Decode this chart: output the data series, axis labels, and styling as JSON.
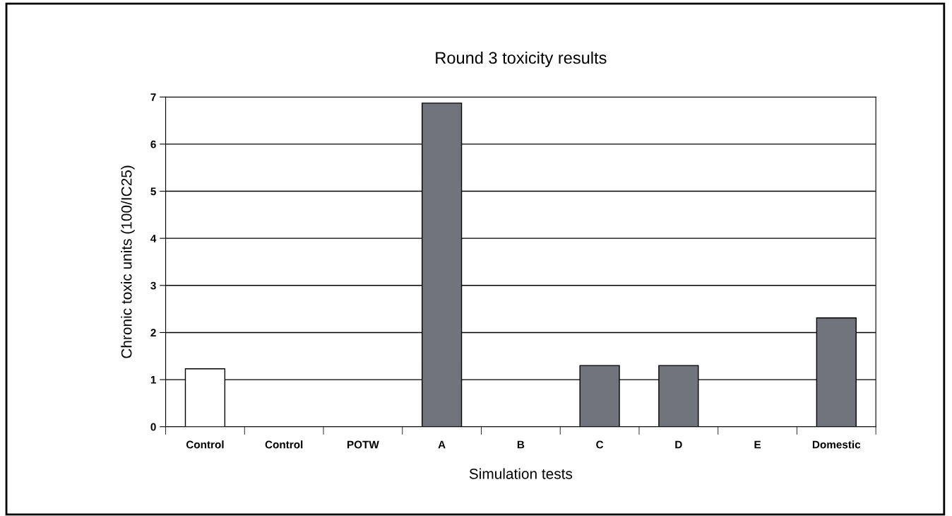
{
  "chart_data": {
    "type": "bar",
    "title": "Round 3 toxicity results",
    "xlabel": "Simulation tests",
    "ylabel": "Chronic toxic units (100/IC25)",
    "categories": [
      "Control",
      "Control",
      "POTW",
      "A",
      "B",
      "C",
      "D",
      "E",
      "Domestic"
    ],
    "values": [
      1.23,
      null,
      null,
      6.87,
      null,
      1.3,
      1.3,
      null,
      2.31
    ],
    "colors": [
      "#ffffff",
      null,
      null,
      "#71747b",
      null,
      "#71747b",
      "#71747b",
      null,
      "#71747b"
    ],
    "ylim": [
      0,
      7
    ],
    "yticks": [
      0,
      1,
      2,
      3,
      4,
      5,
      6,
      7
    ],
    "grid": "y"
  }
}
